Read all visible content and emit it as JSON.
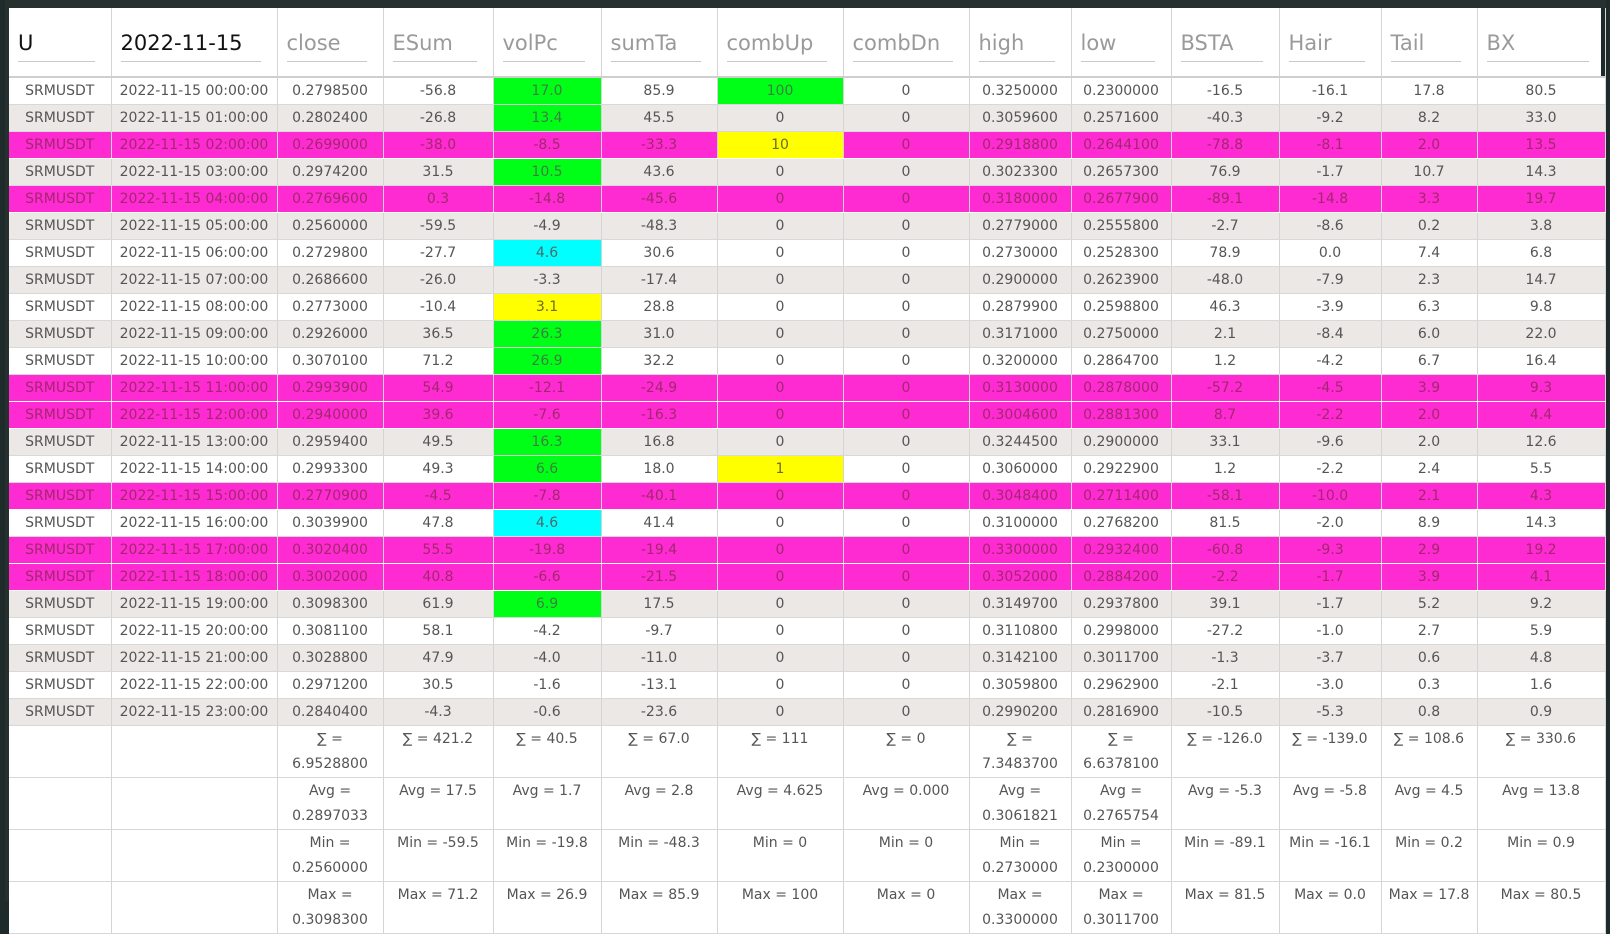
{
  "header": {
    "col0_label": "U",
    "date": "2022-11-15",
    "metrics": [
      "close",
      "ESum",
      "volPc",
      "sumTa",
      "combUp",
      "combDn",
      "high",
      "low",
      "BSTA",
      "Hair",
      "Tail",
      "BX"
    ]
  },
  "colors": {
    "pink_row": "#ff2bd2",
    "green_cell": "#00ff17",
    "cyan_cell": "#00ffff",
    "yellow_cell": "#ffff00",
    "frame": "#26312f"
  },
  "rows": [
    {
      "symbol": "SRMUSDT",
      "time": "2022-11-15 00:00:00",
      "style": "odd",
      "vals": [
        "0.2798500",
        "-56.8",
        "17.0",
        "85.9",
        "100",
        "0",
        "0.3250000",
        "0.2300000",
        "-16.5",
        "-16.1",
        "17.8",
        "80.5"
      ],
      "hl": {
        "volPc": "green",
        "combUp": "green"
      }
    },
    {
      "symbol": "SRMUSDT",
      "time": "2022-11-15 01:00:00",
      "style": "even",
      "vals": [
        "0.2802400",
        "-26.8",
        "13.4",
        "45.5",
        "0",
        "0",
        "0.3059600",
        "0.2571600",
        "-40.3",
        "-9.2",
        "8.2",
        "33.0"
      ],
      "hl": {
        "volPc": "green"
      }
    },
    {
      "symbol": "SRMUSDT",
      "time": "2022-11-15 02:00:00",
      "style": "pink",
      "vals": [
        "0.2699000",
        "-38.0",
        "-8.5",
        "-33.3",
        "10",
        "0",
        "0.2918800",
        "0.2644100",
        "-78.8",
        "-8.1",
        "2.0",
        "13.5"
      ],
      "hl": {
        "combUp": "yellow"
      }
    },
    {
      "symbol": "SRMUSDT",
      "time": "2022-11-15 03:00:00",
      "style": "even",
      "vals": [
        "0.2974200",
        "31.5",
        "10.5",
        "43.6",
        "0",
        "0",
        "0.3023300",
        "0.2657300",
        "76.9",
        "-1.7",
        "10.7",
        "14.3"
      ],
      "hl": {
        "volPc": "green"
      }
    },
    {
      "symbol": "SRMUSDT",
      "time": "2022-11-15 04:00:00",
      "style": "pink",
      "vals": [
        "0.2769600",
        "0.3",
        "-14.8",
        "-45.6",
        "0",
        "0",
        "0.3180000",
        "0.2677900",
        "-89.1",
        "-14.8",
        "3.3",
        "19.7"
      ],
      "hl": {}
    },
    {
      "symbol": "SRMUSDT",
      "time": "2022-11-15 05:00:00",
      "style": "even",
      "vals": [
        "0.2560000",
        "-59.5",
        "-4.9",
        "-48.3",
        "0",
        "0",
        "0.2779000",
        "0.2555800",
        "-2.7",
        "-8.6",
        "0.2",
        "3.8"
      ],
      "hl": {}
    },
    {
      "symbol": "SRMUSDT",
      "time": "2022-11-15 06:00:00",
      "style": "odd",
      "vals": [
        "0.2729800",
        "-27.7",
        "4.6",
        "30.6",
        "0",
        "0",
        "0.2730000",
        "0.2528300",
        "78.9",
        "0.0",
        "7.4",
        "6.8"
      ],
      "hl": {
        "volPc": "cyan"
      }
    },
    {
      "symbol": "SRMUSDT",
      "time": "2022-11-15 07:00:00",
      "style": "even",
      "vals": [
        "0.2686600",
        "-26.0",
        "-3.3",
        "-17.4",
        "0",
        "0",
        "0.2900000",
        "0.2623900",
        "-48.0",
        "-7.9",
        "2.3",
        "14.7"
      ],
      "hl": {}
    },
    {
      "symbol": "SRMUSDT",
      "time": "2022-11-15 08:00:00",
      "style": "odd",
      "vals": [
        "0.2773000",
        "-10.4",
        "3.1",
        "28.8",
        "0",
        "0",
        "0.2879900",
        "0.2598800",
        "46.3",
        "-3.9",
        "6.3",
        "9.8"
      ],
      "hl": {
        "volPc": "yellow"
      }
    },
    {
      "symbol": "SRMUSDT",
      "time": "2022-11-15 09:00:00",
      "style": "even",
      "vals": [
        "0.2926000",
        "36.5",
        "26.3",
        "31.0",
        "0",
        "0",
        "0.3171000",
        "0.2750000",
        "2.1",
        "-8.4",
        "6.0",
        "22.0"
      ],
      "hl": {
        "volPc": "green"
      }
    },
    {
      "symbol": "SRMUSDT",
      "time": "2022-11-15 10:00:00",
      "style": "odd",
      "vals": [
        "0.3070100",
        "71.2",
        "26.9",
        "32.2",
        "0",
        "0",
        "0.3200000",
        "0.2864700",
        "1.2",
        "-4.2",
        "6.7",
        "16.4"
      ],
      "hl": {
        "volPc": "green"
      }
    },
    {
      "symbol": "SRMUSDT",
      "time": "2022-11-15 11:00:00",
      "style": "pink",
      "vals": [
        "0.2993900",
        "54.9",
        "-12.1",
        "-24.9",
        "0",
        "0",
        "0.3130000",
        "0.2878000",
        "-57.2",
        "-4.5",
        "3.9",
        "9.3"
      ],
      "hl": {}
    },
    {
      "symbol": "SRMUSDT",
      "time": "2022-11-15 12:00:00",
      "style": "pink",
      "vals": [
        "0.2940000",
        "39.6",
        "-7.6",
        "-16.3",
        "0",
        "0",
        "0.3004600",
        "0.2881300",
        "8.7",
        "-2.2",
        "2.0",
        "4.4"
      ],
      "hl": {}
    },
    {
      "symbol": "SRMUSDT",
      "time": "2022-11-15 13:00:00",
      "style": "even",
      "vals": [
        "0.2959400",
        "49.5",
        "16.3",
        "16.8",
        "0",
        "0",
        "0.3244500",
        "0.2900000",
        "33.1",
        "-9.6",
        "2.0",
        "12.6"
      ],
      "hl": {
        "volPc": "green"
      }
    },
    {
      "symbol": "SRMUSDT",
      "time": "2022-11-15 14:00:00",
      "style": "odd",
      "vals": [
        "0.2993300",
        "49.3",
        "6.6",
        "18.0",
        "1",
        "0",
        "0.3060000",
        "0.2922900",
        "1.2",
        "-2.2",
        "2.4",
        "5.5"
      ],
      "hl": {
        "volPc": "green",
        "combUp": "yellow"
      }
    },
    {
      "symbol": "SRMUSDT",
      "time": "2022-11-15 15:00:00",
      "style": "pink",
      "vals": [
        "0.2770900",
        "-4.5",
        "-7.8",
        "-40.1",
        "0",
        "0",
        "0.3048400",
        "0.2711400",
        "-58.1",
        "-10.0",
        "2.1",
        "4.3"
      ],
      "hl": {}
    },
    {
      "symbol": "SRMUSDT",
      "time": "2022-11-15 16:00:00",
      "style": "odd",
      "vals": [
        "0.3039900",
        "47.8",
        "4.6",
        "41.4",
        "0",
        "0",
        "0.3100000",
        "0.2768200",
        "81.5",
        "-2.0",
        "8.9",
        "14.3"
      ],
      "hl": {
        "volPc": "cyan"
      }
    },
    {
      "symbol": "SRMUSDT",
      "time": "2022-11-15 17:00:00",
      "style": "pink",
      "vals": [
        "0.3020400",
        "55.5",
        "-19.8",
        "-19.4",
        "0",
        "0",
        "0.3300000",
        "0.2932400",
        "-60.8",
        "-9.3",
        "2.9",
        "19.2"
      ],
      "hl": {}
    },
    {
      "symbol": "SRMUSDT",
      "time": "2022-11-15 18:00:00",
      "style": "pink",
      "vals": [
        "0.3002000",
        "40.8",
        "-6.6",
        "-21.5",
        "0",
        "0",
        "0.3052000",
        "0.2884200",
        "-2.2",
        "-1.7",
        "3.9",
        "4.1"
      ],
      "hl": {}
    },
    {
      "symbol": "SRMUSDT",
      "time": "2022-11-15 19:00:00",
      "style": "even",
      "vals": [
        "0.3098300",
        "61.9",
        "6.9",
        "17.5",
        "0",
        "0",
        "0.3149700",
        "0.2937800",
        "39.1",
        "-1.7",
        "5.2",
        "9.2"
      ],
      "hl": {
        "volPc": "green"
      }
    },
    {
      "symbol": "SRMUSDT",
      "time": "2022-11-15 20:00:00",
      "style": "odd",
      "vals": [
        "0.3081100",
        "58.1",
        "-4.2",
        "-9.7",
        "0",
        "0",
        "0.3110800",
        "0.2998000",
        "-27.2",
        "-1.0",
        "2.7",
        "5.9"
      ],
      "hl": {}
    },
    {
      "symbol": "SRMUSDT",
      "time": "2022-11-15 21:00:00",
      "style": "even",
      "vals": [
        "0.3028800",
        "47.9",
        "-4.0",
        "-11.0",
        "0",
        "0",
        "0.3142100",
        "0.3011700",
        "-1.3",
        "-3.7",
        "0.6",
        "4.8"
      ],
      "hl": {}
    },
    {
      "symbol": "SRMUSDT",
      "time": "2022-11-15 22:00:00",
      "style": "odd",
      "vals": [
        "0.2971200",
        "30.5",
        "-1.6",
        "-13.1",
        "0",
        "0",
        "0.3059800",
        "0.2962900",
        "-2.1",
        "-3.0",
        "0.3",
        "1.6"
      ],
      "hl": {}
    },
    {
      "symbol": "SRMUSDT",
      "time": "2022-11-15 23:00:00",
      "style": "even",
      "vals": [
        "0.2840400",
        "-4.3",
        "-0.6",
        "-23.6",
        "0",
        "0",
        "0.2990200",
        "0.2816900",
        "-10.5",
        "-5.3",
        "0.8",
        "0.9"
      ],
      "hl": {}
    }
  ],
  "footer": {
    "sum": [
      "∑ = 6.9528800",
      "∑ = 421.2",
      "∑ = 40.5",
      "∑ = 67.0",
      "∑ = 111",
      "∑ = 0",
      "∑ = 7.3483700",
      "∑ = 6.6378100",
      "∑ = -126.0",
      "∑ = -139.0",
      "∑ = 108.6",
      "∑ = 330.6"
    ],
    "avg": [
      "Avg = 0.2897033",
      "Avg = 17.5",
      "Avg = 1.7",
      "Avg = 2.8",
      "Avg = 4.625",
      "Avg = 0.000",
      "Avg = 0.3061821",
      "Avg = 0.2765754",
      "Avg = -5.3",
      "Avg = -5.8",
      "Avg = 4.5",
      "Avg = 13.8"
    ],
    "min": [
      "Min = 0.2560000",
      "Min = -59.5",
      "Min = -19.8",
      "Min = -48.3",
      "Min = 0",
      "Min = 0",
      "Min = 0.2730000",
      "Min = 0.2300000",
      "Min = -89.1",
      "Min = -16.1",
      "Min = 0.2",
      "Min = 0.9"
    ],
    "max": [
      "Max = 0.3098300",
      "Max = 71.2",
      "Max = 26.9",
      "Max = 85.9",
      "Max = 100",
      "Max = 0",
      "Max = 0.3300000",
      "Max = 0.3011700",
      "Max = 81.5",
      "Max = 0.0",
      "Max = 17.8",
      "Max = 80.5"
    ]
  }
}
